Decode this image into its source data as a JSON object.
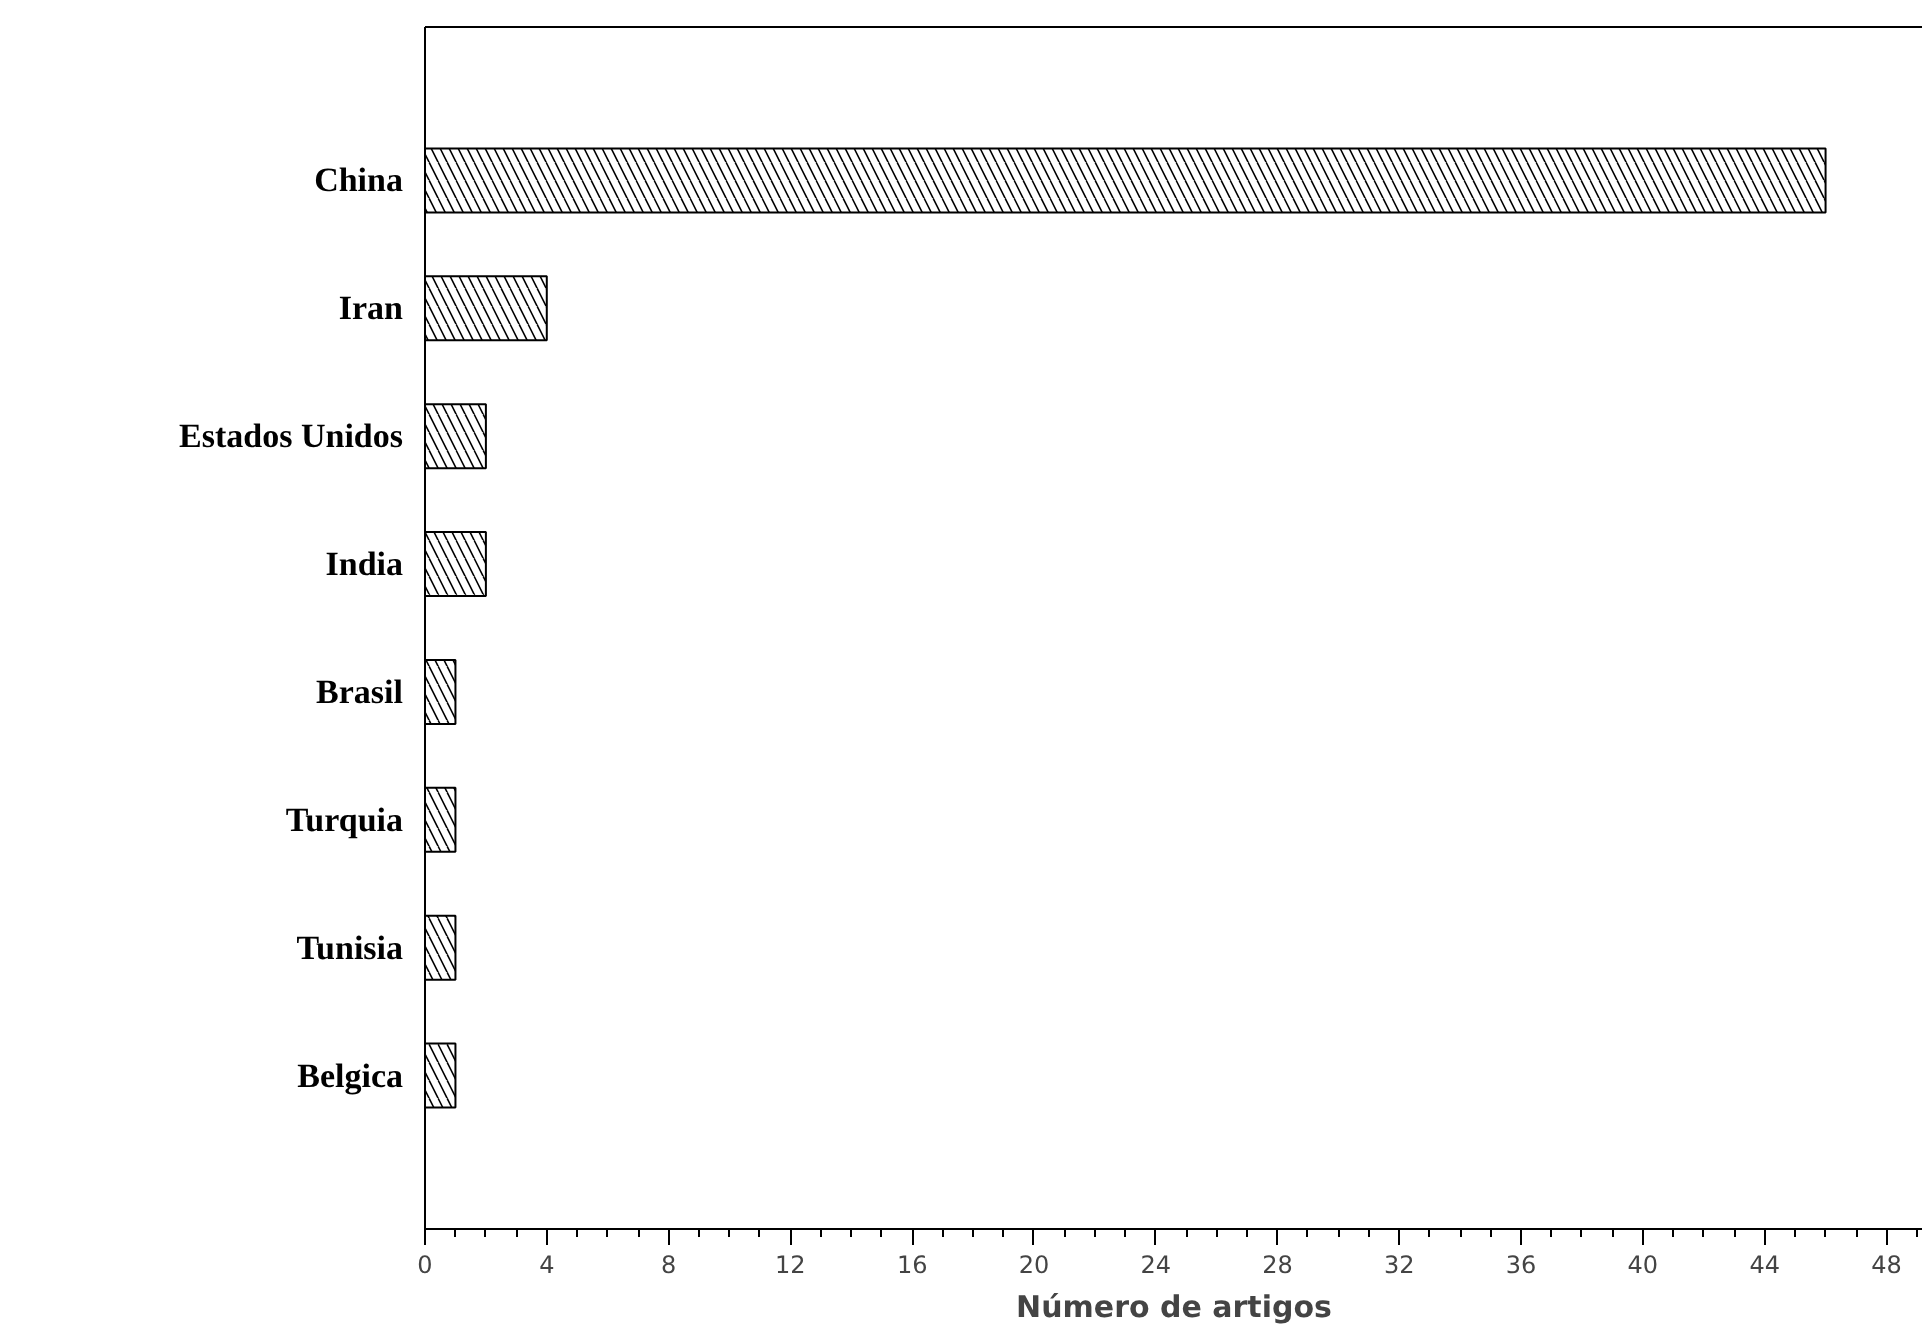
{
  "chart_data": {
    "type": "bar",
    "orientation": "horizontal",
    "xlabel": "Número de artigos",
    "categories": [
      "China",
      "Iran",
      "Estados Unidos",
      "India",
      "Brasil",
      "Turquia",
      "Tunisia",
      "Belgica"
    ],
    "values": [
      46,
      4,
      2,
      2,
      1,
      1,
      1,
      1
    ],
    "color": "#ffffff",
    "xlim": [
      0,
      49.2
    ],
    "xticks": [
      0,
      4,
      8,
      12,
      16,
      20,
      24,
      28,
      32,
      36,
      40,
      44,
      48
    ],
    "grid": false
  }
}
